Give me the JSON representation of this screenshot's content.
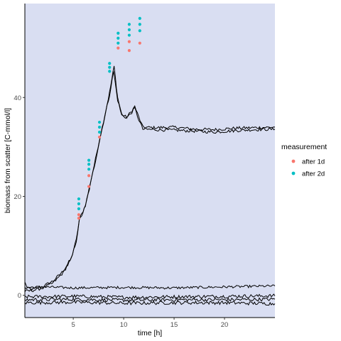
{
  "chart_data": {
    "type": "scatter",
    "xlabel": "time [h]",
    "ylabel": "biomass from scatter [C-mmol/l]",
    "xlim": [
      0.2,
      25.0
    ],
    "ylim": [
      -4.5,
      59.0
    ],
    "x_ticks": [
      5,
      10,
      15,
      20
    ],
    "y_ticks": [
      0,
      20,
      40
    ],
    "grid": false,
    "background": "#d9def2",
    "legend": {
      "title": "measurement",
      "position": "right",
      "entries": [
        {
          "label": "after 1d",
          "color": "#f8766d"
        },
        {
          "label": "after 2d",
          "color": "#00bfc4"
        }
      ]
    },
    "points": [
      {
        "series": "after 1d",
        "x": 5.55,
        "y": 15.6
      },
      {
        "series": "after 1d",
        "x": 5.55,
        "y": 16.3
      },
      {
        "series": "after 1d",
        "x": 6.55,
        "y": 22.0
      },
      {
        "series": "after 1d",
        "x": 6.55,
        "y": 24.2
      },
      {
        "series": "after 1d",
        "x": 7.6,
        "y": 32.0
      },
      {
        "series": "after 1d",
        "x": 9.45,
        "y": 50.0
      },
      {
        "series": "after 1d",
        "x": 10.55,
        "y": 49.5
      },
      {
        "series": "after 1d",
        "x": 10.55,
        "y": 51.3
      },
      {
        "series": "after 1d",
        "x": 11.6,
        "y": 51.0
      },
      {
        "series": "after 2d",
        "x": 5.55,
        "y": 17.5
      },
      {
        "series": "after 2d",
        "x": 5.55,
        "y": 18.5
      },
      {
        "series": "after 2d",
        "x": 5.55,
        "y": 19.5
      },
      {
        "series": "after 2d",
        "x": 6.55,
        "y": 25.5
      },
      {
        "series": "after 2d",
        "x": 6.55,
        "y": 26.5
      },
      {
        "series": "after 2d",
        "x": 6.55,
        "y": 27.3
      },
      {
        "series": "after 2d",
        "x": 7.6,
        "y": 33.0
      },
      {
        "series": "after 2d",
        "x": 7.6,
        "y": 34.0
      },
      {
        "series": "after 2d",
        "x": 7.6,
        "y": 35.0
      },
      {
        "series": "after 2d",
        "x": 8.6,
        "y": 45.3
      },
      {
        "series": "after 2d",
        "x": 8.6,
        "y": 46.1
      },
      {
        "series": "after 2d",
        "x": 8.6,
        "y": 46.9
      },
      {
        "series": "after 2d",
        "x": 9.45,
        "y": 51.0
      },
      {
        "series": "after 2d",
        "x": 9.45,
        "y": 52.0
      },
      {
        "series": "after 2d",
        "x": 9.45,
        "y": 53.0
      },
      {
        "series": "after 2d",
        "x": 10.55,
        "y": 52.6
      },
      {
        "series": "after 2d",
        "x": 10.55,
        "y": 53.7
      },
      {
        "series": "after 2d",
        "x": 10.55,
        "y": 54.8
      },
      {
        "series": "after 2d",
        "x": 11.6,
        "y": 53.5
      },
      {
        "series": "after 2d",
        "x": 11.6,
        "y": 54.8
      },
      {
        "series": "after 2d",
        "x": 11.6,
        "y": 56.0
      }
    ],
    "lines": [
      {
        "color": "#000000",
        "noise": 0.3,
        "points": [
          [
            0.2,
            1.5
          ],
          [
            1,
            1.2
          ],
          [
            2,
            1.8
          ],
          [
            3,
            2.9
          ],
          [
            4,
            4.9
          ],
          [
            4.8,
            7.5
          ],
          [
            5.3,
            11.2
          ],
          [
            5.6,
            15.3
          ],
          [
            6.2,
            18.2
          ],
          [
            6.6,
            21.8
          ],
          [
            7.2,
            27.5
          ],
          [
            7.6,
            31.5
          ],
          [
            8,
            35.2
          ],
          [
            8.6,
            41.0
          ],
          [
            9.05,
            46.3
          ],
          [
            9.4,
            40.0
          ],
          [
            9.8,
            36.6
          ],
          [
            10.3,
            36.0
          ],
          [
            10.8,
            37.3
          ],
          [
            11.1,
            38.2
          ],
          [
            11.5,
            36.0
          ],
          [
            11.9,
            34.0
          ],
          [
            13,
            33.9
          ],
          [
            15,
            34.0
          ],
          [
            17,
            33.6
          ],
          [
            19,
            33.5
          ],
          [
            21,
            33.8
          ],
          [
            23,
            33.9
          ],
          [
            25,
            34.0
          ]
        ]
      },
      {
        "color": "#000000",
        "noise": 0.3,
        "points": [
          [
            0.2,
            0.8
          ],
          [
            1,
            1.0
          ],
          [
            2,
            1.5
          ],
          [
            3,
            2.5
          ],
          [
            4,
            4.6
          ],
          [
            4.8,
            7.3
          ],
          [
            5.3,
            11.0
          ],
          [
            5.6,
            15.0
          ],
          [
            6.2,
            18.0
          ],
          [
            6.6,
            21.5
          ],
          [
            7.2,
            27.2
          ],
          [
            7.6,
            31.2
          ],
          [
            8,
            35.0
          ],
          [
            8.6,
            40.5
          ],
          [
            9.0,
            45.3
          ],
          [
            9.4,
            39.5
          ],
          [
            9.8,
            36.4
          ],
          [
            10.3,
            35.9
          ],
          [
            10.8,
            37.0
          ],
          [
            11.1,
            37.8
          ],
          [
            11.5,
            35.5
          ],
          [
            11.9,
            33.6
          ],
          [
            13,
            33.5
          ],
          [
            15,
            33.4
          ],
          [
            17,
            33.2
          ],
          [
            19,
            33.0
          ],
          [
            21,
            33.3
          ],
          [
            23,
            33.5
          ],
          [
            25,
            33.6
          ]
        ]
      },
      {
        "color": "#000000",
        "noise": 0.25,
        "points": [
          [
            0.2,
            2.9
          ],
          [
            0.4,
            1.6
          ],
          [
            2,
            1.7
          ],
          [
            5,
            1.5
          ],
          [
            10,
            1.6
          ],
          [
            15,
            1.5
          ],
          [
            20,
            1.7
          ],
          [
            25,
            1.9
          ]
        ]
      },
      {
        "color": "#000000",
        "noise": 0.35,
        "points": [
          [
            0.2,
            -0.3
          ],
          [
            5,
            -0.2
          ],
          [
            10,
            -0.4
          ],
          [
            15,
            -0.3
          ],
          [
            20,
            -0.2
          ],
          [
            25,
            -0.1
          ]
        ]
      },
      {
        "color": "#000000",
        "noise": 0.35,
        "points": [
          [
            0.2,
            -0.9
          ],
          [
            5,
            -0.8
          ],
          [
            10,
            -1.0
          ],
          [
            15,
            -0.9
          ],
          [
            20,
            -0.9
          ],
          [
            25,
            -0.8
          ]
        ]
      },
      {
        "color": "#000000",
        "noise": 0.35,
        "points": [
          [
            0.2,
            -1.5
          ],
          [
            5,
            -1.4
          ],
          [
            10,
            -1.6
          ],
          [
            15,
            -1.5
          ],
          [
            20,
            -1.5
          ],
          [
            25,
            -1.7
          ]
        ]
      }
    ]
  }
}
